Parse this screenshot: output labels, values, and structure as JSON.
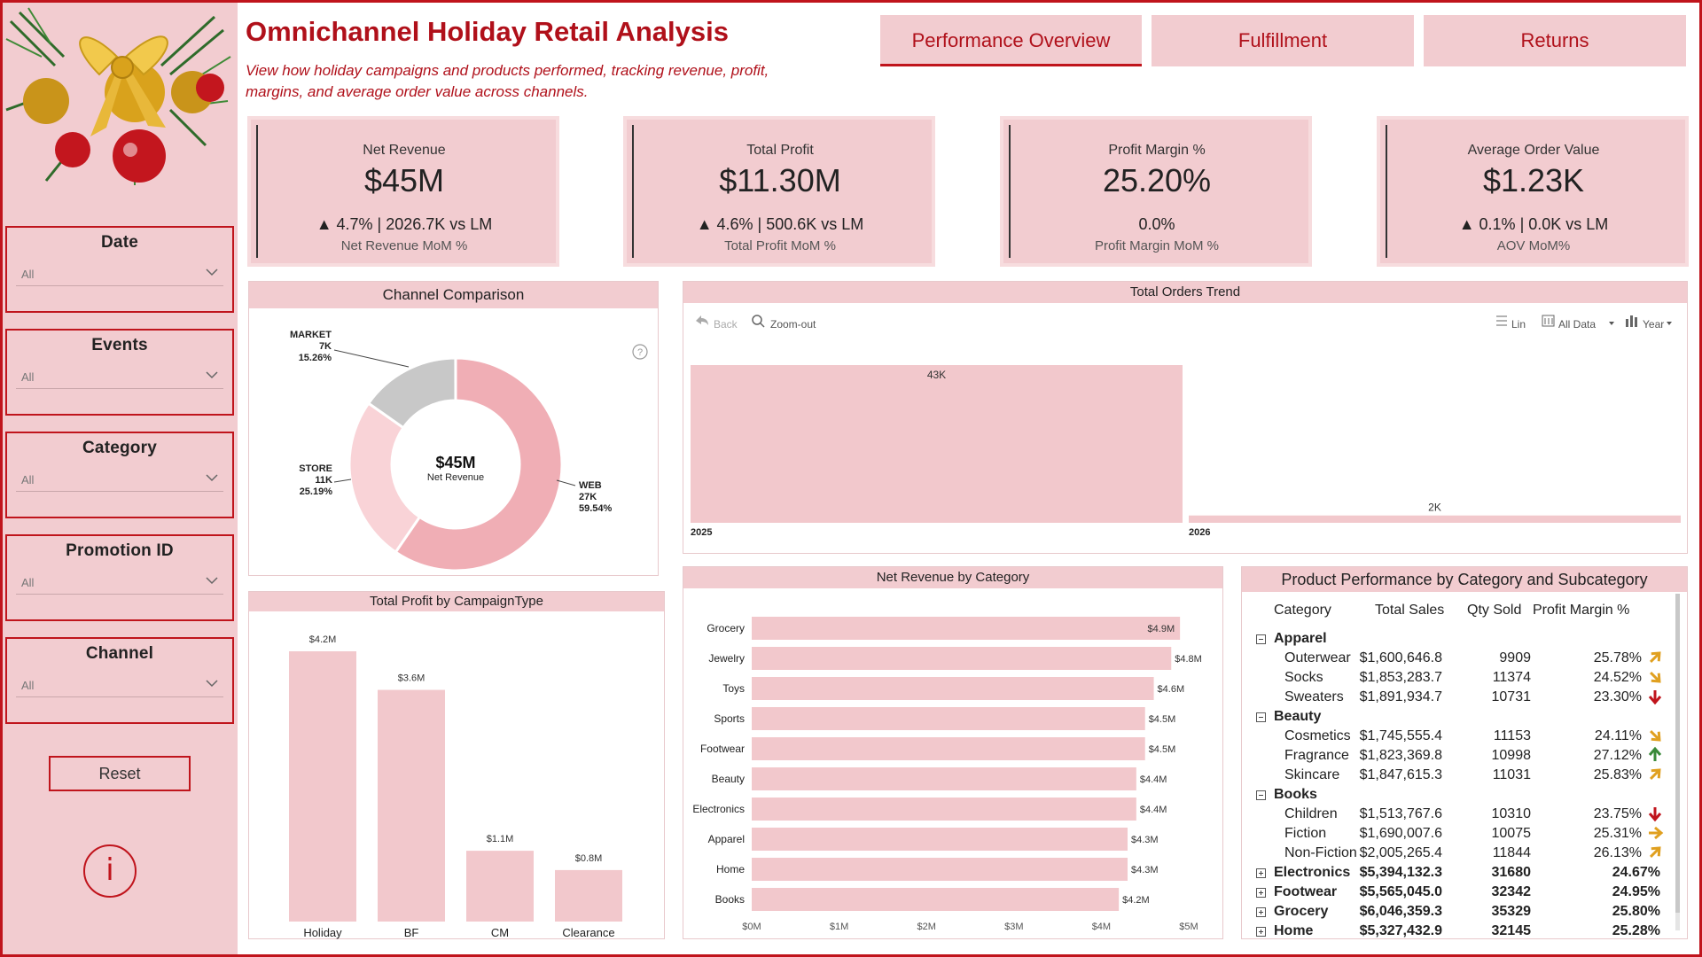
{
  "title": "Omnichannel Holiday Retail Analysis",
  "subtitle": "View how holiday campaigns and products performed, tracking revenue, profit, margins, and average order value across channels.",
  "tabs": [
    "Performance Overview",
    "Fulfillment",
    "Returns"
  ],
  "filters": [
    {
      "label": "Date",
      "value": "All"
    },
    {
      "label": "Events",
      "value": "All"
    },
    {
      "label": "Category",
      "value": "All"
    },
    {
      "label": "Promotion ID",
      "value": "All"
    },
    {
      "label": "Channel",
      "value": "All"
    }
  ],
  "reset_label": "Reset",
  "info_glyph": "i",
  "kpis": [
    {
      "label": "Net Revenue",
      "value": "$45M",
      "delta": "▲ 4.7% | 2026.7K vs LM",
      "sub": "Net Revenue MoM %"
    },
    {
      "label": "Total Profit",
      "value": "$11.30M",
      "delta": "▲ 4.6% | 500.6K vs LM",
      "sub": "Total Profit MoM %"
    },
    {
      "label": "Profit Margin %",
      "value": "25.20%",
      "delta": "0.0%",
      "sub": "Profit Margin MoM %"
    },
    {
      "label": "Average Order Value",
      "value": "$1.23K",
      "delta": "▲ 0.1% | 0.0K vs LM",
      "sub": "AOV MoM%"
    }
  ],
  "colors": {
    "accent": "#c0141c",
    "panel_pink": "#f2ccd0",
    "bar_pink": "#f2c8cc",
    "donut_web": "#f0aeb5",
    "donut_store": "#f9d3d7",
    "donut_market": "#c8c8c8"
  },
  "channel_comparison": {
    "title": "Channel Comparison",
    "center_value": "$45M",
    "center_label": "Net Revenue",
    "help_icon": "?",
    "chart_data": {
      "type": "pie",
      "slices": [
        {
          "name": "WEB",
          "count": "27K",
          "pct": 59.54,
          "label_pct": "59.54%"
        },
        {
          "name": "STORE",
          "count": "11K",
          "pct": 25.19,
          "label_pct": "25.19%"
        },
        {
          "name": "MARKET",
          "count": "7K",
          "pct": 15.26,
          "label_pct": "15.26%"
        }
      ]
    }
  },
  "orders_trend": {
    "title": "Total Orders Trend",
    "toolbar": {
      "back": "Back",
      "zoom": "Zoom-out",
      "lin": "Lin",
      "all_data": "All Data",
      "year": "Year"
    },
    "chart_data": {
      "type": "bar",
      "categories": [
        "2025",
        "2026"
      ],
      "values": [
        43,
        2
      ],
      "value_labels": [
        "43K",
        "2K"
      ]
    }
  },
  "profit_by_campaign": {
    "title": "Total Profit by CampaignType",
    "chart_data": {
      "type": "bar",
      "categories": [
        "Holiday",
        "BF",
        "CM",
        "Clearance"
      ],
      "values": [
        4.2,
        3.6,
        1.1,
        0.8
      ],
      "value_labels": [
        "$4.2M",
        "$3.6M",
        "$1.1M",
        "$0.8M"
      ],
      "ylim": [
        0,
        4.2
      ]
    }
  },
  "revenue_by_category": {
    "title": "Net Revenue by Category",
    "chart_data": {
      "type": "bar",
      "orientation": "horizontal",
      "categories": [
        "Grocery",
        "Jewelry",
        "Toys",
        "Sports",
        "Footwear",
        "Beauty",
        "Electronics",
        "Apparel",
        "Home",
        "Books"
      ],
      "values": [
        4.9,
        4.8,
        4.6,
        4.5,
        4.5,
        4.4,
        4.4,
        4.3,
        4.3,
        4.2
      ],
      "value_labels": [
        "$4.9M",
        "$4.8M",
        "$4.6M",
        "$4.5M",
        "$4.5M",
        "$4.4M",
        "$4.4M",
        "$4.3M",
        "$4.3M",
        "$4.2M"
      ],
      "xlim": [
        0,
        5
      ],
      "x_ticks": [
        "$0M",
        "$1M",
        "$2M",
        "$3M",
        "$4M",
        "$5M"
      ]
    }
  },
  "product_matrix": {
    "title": "Product Performance by Category and Subcategory",
    "headers": [
      "Category",
      "Total Sales",
      "Qty Sold",
      "Profit Margin %"
    ],
    "rows": [
      {
        "type": "group",
        "expanded": true,
        "name": "Apparel",
        "sales": "",
        "qty": "",
        "margin": "",
        "trend": ""
      },
      {
        "type": "child",
        "name": "Outerwear",
        "sales": "$1,600,646.8",
        "qty": "9909",
        "margin": "25.78%",
        "trend": "up-right"
      },
      {
        "type": "child",
        "name": "Socks",
        "sales": "$1,853,283.7",
        "qty": "11374",
        "margin": "24.52%",
        "trend": "down-right"
      },
      {
        "type": "child",
        "name": "Sweaters",
        "sales": "$1,891,934.7",
        "qty": "10731",
        "margin": "23.30%",
        "trend": "down"
      },
      {
        "type": "group",
        "expanded": true,
        "name": "Beauty",
        "sales": "",
        "qty": "",
        "margin": "",
        "trend": ""
      },
      {
        "type": "child",
        "name": "Cosmetics",
        "sales": "$1,745,555.4",
        "qty": "11153",
        "margin": "24.11%",
        "trend": "down-right"
      },
      {
        "type": "child",
        "name": "Fragrance",
        "sales": "$1,823,369.8",
        "qty": "10998",
        "margin": "27.12%",
        "trend": "up"
      },
      {
        "type": "child",
        "name": "Skincare",
        "sales": "$1,847,615.3",
        "qty": "11031",
        "margin": "25.83%",
        "trend": "up-right"
      },
      {
        "type": "group",
        "expanded": true,
        "name": "Books",
        "sales": "",
        "qty": "",
        "margin": "",
        "trend": ""
      },
      {
        "type": "child",
        "name": "Children",
        "sales": "$1,513,767.6",
        "qty": "10310",
        "margin": "23.75%",
        "trend": "down"
      },
      {
        "type": "child",
        "name": "Fiction",
        "sales": "$1,690,007.6",
        "qty": "10075",
        "margin": "25.31%",
        "trend": "right"
      },
      {
        "type": "child",
        "name": "Non-Fiction",
        "sales": "$2,005,265.4",
        "qty": "11844",
        "margin": "26.13%",
        "trend": "up-right"
      },
      {
        "type": "group",
        "expanded": false,
        "name": "Electronics",
        "sales": "$5,394,132.3",
        "qty": "31680",
        "margin": "24.67%",
        "trend": ""
      },
      {
        "type": "group",
        "expanded": false,
        "name": "Footwear",
        "sales": "$5,565,045.0",
        "qty": "32342",
        "margin": "24.95%",
        "trend": ""
      },
      {
        "type": "group",
        "expanded": false,
        "name": "Grocery",
        "sales": "$6,046,359.3",
        "qty": "35329",
        "margin": "25.80%",
        "trend": ""
      },
      {
        "type": "group",
        "expanded": false,
        "name": "Home",
        "sales": "$5,327,432.9",
        "qty": "32145",
        "margin": "25.28%",
        "trend": ""
      }
    ]
  }
}
